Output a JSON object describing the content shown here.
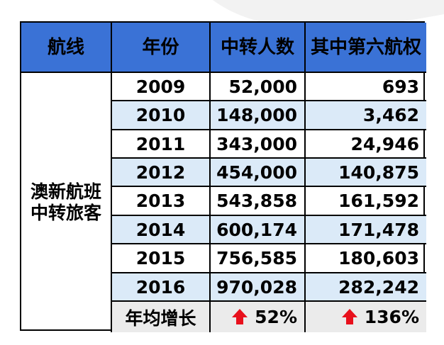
{
  "table": {
    "headers": [
      "航线",
      "年份",
      "中转人数",
      "其中第六航权"
    ],
    "route_label": "澳新航班中转旅客",
    "rows": [
      {
        "year": "2009",
        "transfer": "52,000",
        "sixth": "693"
      },
      {
        "year": "2010",
        "transfer": "148,000",
        "sixth": "3,462"
      },
      {
        "year": "2011",
        "transfer": "343,000",
        "sixth": "24,946"
      },
      {
        "year": "2012",
        "transfer": "454,000",
        "sixth": "140,875"
      },
      {
        "year": "2013",
        "transfer": "543,858",
        "sixth": "161,592"
      },
      {
        "year": "2014",
        "transfer": "600,174",
        "sixth": "171,478"
      },
      {
        "year": "2015",
        "transfer": "756,585",
        "sixth": "180,603"
      },
      {
        "year": "2016",
        "transfer": "970,028",
        "sixth": "282,242"
      }
    ],
    "footer": {
      "label": "年均增长",
      "transfer_growth": "52%",
      "sixth_growth": "136%"
    }
  },
  "colors": {
    "header_bg": "#3a72d6",
    "alt_row_bg": "#dbeaf8",
    "footer_bg": "#ebebeb",
    "arrow": "#e8101c"
  },
  "icons": {
    "growth": "red-up-arrow-icon"
  }
}
